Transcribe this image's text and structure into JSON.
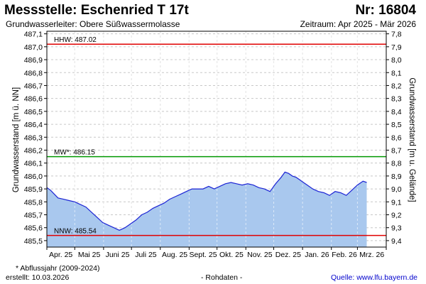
{
  "header": {
    "title": "Messstelle: Eschenried T 17t",
    "number": "Nr: 16804",
    "aquifer": "Grundwasserleiter:   Obere Süßwassermolasse",
    "period": "Zeitraum: Apr 2025 - Mär 2026"
  },
  "footer": {
    "footnote": "* Abflussjahr (2009-2024)",
    "created": "erstellt:  10.03.2026",
    "raw": "- Rohdaten -",
    "source": "Quelle: www.lfu.bayern.de"
  },
  "colors": {
    "fill": "#a9c8ee",
    "line": "#1c24d4",
    "hhw": "#e00000",
    "mw": "#009900",
    "nnw": "#e00000",
    "grid": "#c8c8c8"
  },
  "chart_data": {
    "type": "area",
    "ylabel_left": "Grundwasserstand [m ü. NN]",
    "ylabel_right": "Grundwasserstand [m u. Gelände]",
    "ylim": [
      485.45,
      487.12
    ],
    "yticks_left": [
      "487,1",
      "487,0",
      "486,9",
      "486,8",
      "486,7",
      "486,6",
      "486,5",
      "486,4",
      "486,3",
      "486,2",
      "486,1",
      "486,0",
      "485,9",
      "485,8",
      "485,7",
      "485,6",
      "485,5"
    ],
    "yticks_left_values": [
      487.1,
      487.0,
      486.9,
      486.8,
      486.7,
      486.6,
      486.5,
      486.4,
      486.3,
      486.2,
      486.1,
      486.0,
      485.9,
      485.8,
      485.7,
      485.6,
      485.5
    ],
    "yticks_right": [
      "7,8",
      "7,9",
      "8,0",
      "8,1",
      "8,2",
      "8,3",
      "8,4",
      "8,5",
      "8,6",
      "8,7",
      "8,8",
      "8,9",
      "9,0",
      "9,1",
      "9,2",
      "9,3",
      "9,4"
    ],
    "yticks_right_values": [
      7.8,
      7.9,
      8.0,
      8.1,
      8.2,
      8.3,
      8.4,
      8.5,
      8.6,
      8.7,
      8.8,
      8.9,
      9.0,
      9.1,
      9.2,
      9.3,
      9.4
    ],
    "right_axis_offset": 494.9,
    "x_categories": [
      "Apr. 25",
      "Mai 25",
      "Juni 25",
      "Juli 25",
      "Aug. 25",
      "Sept. 25",
      "Okt. 25",
      "Nov. 25",
      "Dez. 25",
      "Jan. 26",
      "Feb. 26",
      "Mrz. 26"
    ],
    "x_range_days": [
      0,
      365
    ],
    "reference_lines": [
      {
        "label": "HHW: 487.02",
        "value": 487.02,
        "color": "#e00000"
      },
      {
        "label": "MW*: 486.15",
        "value": 486.15,
        "color": "#009900"
      },
      {
        "label": "NNW: 485.54",
        "value": 485.54,
        "color": "#e00000"
      }
    ],
    "series": [
      {
        "day": [
          0,
          4,
          8,
          12,
          18,
          24,
          30,
          36,
          42,
          48,
          54,
          60,
          66,
          72,
          78,
          84,
          90,
          96,
          102,
          108,
          114,
          120,
          126,
          132,
          138,
          144,
          150,
          156,
          162,
          168,
          174,
          180,
          186,
          192,
          198,
          204,
          210,
          216,
          222,
          228,
          234,
          240,
          246,
          252,
          256,
          260,
          264,
          268,
          272,
          276,
          280,
          286,
          292,
          298,
          304,
          310,
          316,
          322,
          328,
          334,
          340,
          344
        ],
        "level": [
          485.91,
          485.89,
          485.86,
          485.83,
          485.82,
          485.81,
          485.8,
          485.78,
          485.76,
          485.72,
          485.68,
          485.64,
          485.62,
          485.6,
          485.58,
          485.6,
          485.63,
          485.66,
          485.7,
          485.72,
          485.75,
          485.77,
          485.79,
          485.82,
          485.84,
          485.86,
          485.88,
          485.9,
          485.9,
          485.9,
          485.92,
          485.9,
          485.92,
          485.94,
          485.95,
          485.94,
          485.93,
          485.94,
          485.93,
          485.91,
          485.9,
          485.88,
          485.94,
          485.99,
          486.03,
          486.02,
          486.0,
          485.99,
          485.97,
          485.95,
          485.93,
          485.9,
          485.88,
          485.87,
          485.85,
          485.88,
          485.87,
          485.85,
          485.89,
          485.93,
          485.96,
          485.95
        ]
      }
    ]
  }
}
